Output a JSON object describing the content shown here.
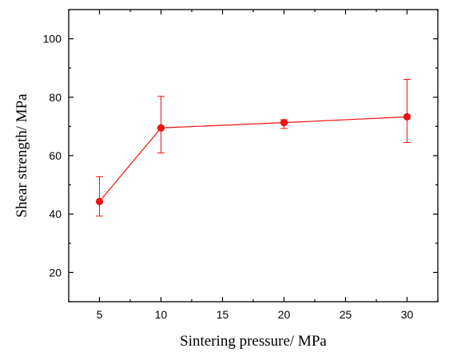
{
  "chart_data": {
    "type": "line",
    "title": "",
    "xlabel": "Sintering pressure/ MPa",
    "ylabel": "Shear strength/ MPa",
    "xlim": [
      2.5,
      32.5
    ],
    "ylim": [
      10,
      110
    ],
    "x_ticks": [
      5,
      10,
      15,
      20,
      25,
      30
    ],
    "y_ticks": [
      20,
      40,
      60,
      80,
      100
    ],
    "grid": false,
    "legend": "none",
    "series": [
      {
        "color": "#f01010",
        "x": [
          5,
          10,
          20,
          30
        ],
        "y": [
          44.3,
          69.5,
          71.3,
          73.3
        ],
        "error_low": [
          5.0,
          8.6,
          2.0,
          8.8
        ],
        "error_high": [
          8.5,
          10.8,
          1.0,
          12.8
        ]
      }
    ]
  }
}
